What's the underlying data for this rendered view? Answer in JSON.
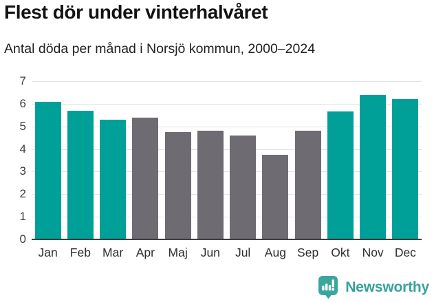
{
  "chart_data": {
    "type": "bar",
    "title": "Flest dör under vinterhalvåret",
    "subtitle": "Antal döda per månad i Norsjö kommun, 2000–2024",
    "categories": [
      "Jan",
      "Feb",
      "Mar",
      "Apr",
      "Maj",
      "Jun",
      "Jul",
      "Aug",
      "Sep",
      "Okt",
      "Nov",
      "Dec"
    ],
    "values": [
      6.1,
      5.7,
      5.3,
      5.4,
      4.75,
      4.8,
      4.6,
      3.75,
      4.8,
      5.65,
      6.4,
      6.2
    ],
    "highlight": [
      true,
      true,
      true,
      false,
      false,
      false,
      false,
      false,
      false,
      true,
      true,
      true
    ],
    "colors": {
      "highlight_bar": "#00A099",
      "default_bar": "#6E6C72",
      "gridline": "#e3e3e3",
      "axis_line": "#3e3e3e"
    },
    "xlabel": "",
    "ylabel": "",
    "ylim": [
      0,
      7
    ],
    "yticks": [
      0,
      1,
      2,
      3,
      4,
      5,
      6,
      7
    ],
    "grid": true,
    "legend": false
  },
  "footer": {
    "brand": "Newsworthy",
    "brand_color": "#35A29A"
  }
}
